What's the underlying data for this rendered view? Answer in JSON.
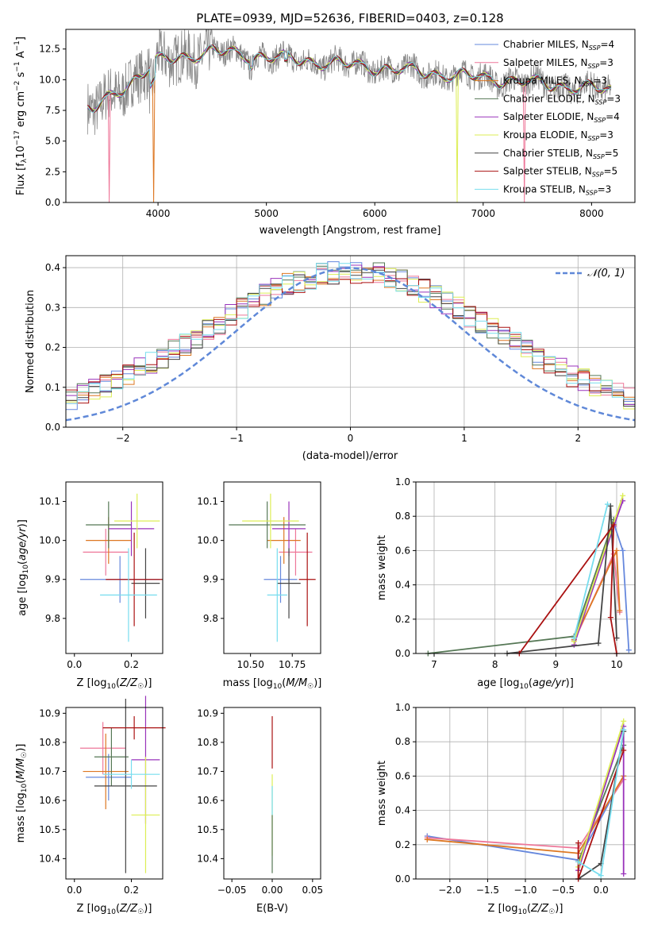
{
  "chart_data": [
    {
      "id": "spectrum",
      "type": "line",
      "title": "PLATE=0939, MJD=52636, FIBERID=0403, z=0.128",
      "xlabel": "wavelength [Angstrom, rest frame]",
      "ylabel": "Flux [f_λ 10^-17 erg cm^-2 s^-1 A^-1]",
      "xlim": [
        3150,
        8400
      ],
      "ylim": [
        0,
        14.1
      ],
      "xticks": [
        4000,
        5000,
        6000,
        7000,
        8000
      ],
      "yticks": [
        0.0,
        2.5,
        5.0,
        7.5,
        10.0,
        12.5
      ],
      "legend": [
        "Chabrier MILES, N_SSP=4",
        "Salpeter MILES, N_SSP=3",
        "Kroupa MILES, N_SSP=3",
        "Chabrier ELODIE, N_SSP=3",
        "Salpeter ELODIE, N_SSP=4",
        "Kroupa ELODIE, N_SSP=3",
        "Chabrier STELIB, N_SSP=5",
        "Salpeter STELIB, N_SSP=5",
        "Kroupa STELIB, N_SSP=3"
      ],
      "legend_position": "right",
      "data_wavelength_range": [
        3350,
        8180
      ],
      "model_cutoffs": [
        {
          "model": "Salpeter MILES",
          "drops_to_zero_at": [
            3550,
            7380
          ]
        },
        {
          "model": "Kroupa MILES",
          "drops_to_zero_at": [
            3960
          ]
        },
        {
          "model": "Kroupa ELODIE",
          "drops_to_zero_at": [
            6760
          ]
        }
      ]
    },
    {
      "id": "residuals",
      "type": "histogram",
      "xlabel": "(data-model)/error",
      "ylabel": "Normed distribution",
      "xlim": [
        -2.5,
        2.5
      ],
      "ylim": [
        0,
        0.43
      ],
      "xticks": [
        -2,
        -1,
        0,
        1,
        2
      ],
      "yticks": [
        0.0,
        0.1,
        0.2,
        0.3,
        0.4
      ],
      "grid": true,
      "reference_curve": {
        "label": "𝒩(0, 1)",
        "mean": 0,
        "sigma": 1,
        "legend_position": "top-right"
      }
    },
    {
      "id": "age_vs_Z",
      "type": "errorbar",
      "xlabel": "Z [log10(Z/Z☉)]",
      "ylabel": "age  [log10(age/yr)]",
      "xlim": [
        -0.03,
        0.31
      ],
      "ylim": [
        9.71,
        10.15
      ],
      "xticks": [
        0.0,
        0.2
      ],
      "yticks": [
        9.8,
        9.9,
        10.0,
        10.1
      ],
      "points": [
        {
          "model": "Chabrier MILES",
          "x": 0.16,
          "xerr": 0.14,
          "y": 9.9,
          "yerr": 0.06
        },
        {
          "model": "Salpeter MILES",
          "x": 0.11,
          "xerr": 0.08,
          "y": 9.97,
          "yerr": 0.06
        },
        {
          "model": "Kroupa MILES",
          "x": 0.12,
          "xerr": 0.08,
          "y": 10.0,
          "yerr": 0.06
        },
        {
          "model": "Chabrier ELODIE",
          "x": 0.12,
          "xerr": 0.08,
          "y": 10.04,
          "yerr": 0.06
        },
        {
          "model": "Salpeter ELODIE",
          "x": 0.2,
          "xerr": 0.08,
          "y": 10.03,
          "yerr": 0.07
        },
        {
          "model": "Kroupa ELODIE",
          "x": 0.22,
          "xerr": 0.08,
          "y": 10.05,
          "yerr": 0.07
        },
        {
          "model": "Chabrier STELIB",
          "x": 0.25,
          "xerr": 0.05,
          "y": 9.89,
          "yerr": 0.09
        },
        {
          "model": "Salpeter STELIB",
          "x": 0.21,
          "xerr": 0.1,
          "y": 9.9,
          "yerr": 0.12
        },
        {
          "model": "Kroupa STELIB",
          "x": 0.19,
          "xerr": 0.1,
          "y": 9.86,
          "yerr": 0.12
        }
      ]
    },
    {
      "id": "age_vs_mass",
      "type": "errorbar",
      "xlabel": "mass [log10(M/M☉)]",
      "ylabel": "",
      "xlim": [
        10.34,
        10.92
      ],
      "ylim": [
        9.71,
        10.15
      ],
      "xticks": [
        10.5,
        10.75
      ],
      "yticks": [
        9.8,
        9.9,
        10.0,
        10.1
      ],
      "points": [
        {
          "model": "Chabrier MILES",
          "x": 10.68,
          "xerr": 0.1,
          "y": 9.9,
          "yerr": 0.06
        },
        {
          "model": "Salpeter MILES",
          "x": 10.77,
          "xerr": 0.1,
          "y": 9.97,
          "yerr": 0.06
        },
        {
          "model": "Kroupa MILES",
          "x": 10.7,
          "xerr": 0.1,
          "y": 10.0,
          "yerr": 0.06
        },
        {
          "model": "Chabrier ELODIE",
          "x": 10.6,
          "xerr": 0.23,
          "y": 10.04,
          "yerr": 0.06
        },
        {
          "model": "Salpeter ELODIE",
          "x": 10.73,
          "xerr": 0.1,
          "y": 10.03,
          "yerr": 0.07
        },
        {
          "model": "Kroupa ELODIE",
          "x": 10.62,
          "xerr": 0.17,
          "y": 10.05,
          "yerr": 0.07
        },
        {
          "model": "Chabrier STELIB",
          "x": 10.73,
          "xerr": 0.07,
          "y": 9.89,
          "yerr": 0.09
        },
        {
          "model": "Salpeter STELIB",
          "x": 10.84,
          "xerr": 0.05,
          "y": 9.9,
          "yerr": 0.12
        },
        {
          "model": "Kroupa STELIB",
          "x": 10.66,
          "xerr": 0.06,
          "y": 9.86,
          "yerr": 0.12
        }
      ]
    },
    {
      "id": "massweight_vs_age",
      "type": "line",
      "xlabel": "age  [log10(age/yr)]",
      "ylabel": "mass weight",
      "xlim": [
        6.7,
        10.3
      ],
      "ylim": [
        0,
        1.0
      ],
      "xticks": [
        7,
        8,
        9,
        10
      ],
      "yticks": [
        0.0,
        0.2,
        0.4,
        0.6,
        0.8,
        1.0
      ],
      "grid": true,
      "series": [
        {
          "name": "Chabrier MILES",
          "x": [
            9.3,
            9.95,
            10.1,
            10.2
          ],
          "y": [
            0.08,
            0.76,
            0.6,
            0.02
          ]
        },
        {
          "name": "Salpeter MILES",
          "x": [
            9.3,
            9.95,
            10.05
          ],
          "y": [
            0.07,
            0.58,
            0.24
          ]
        },
        {
          "name": "Kroupa MILES",
          "x": [
            9.3,
            10.0,
            10.05
          ],
          "y": [
            0.08,
            0.6,
            0.25
          ]
        },
        {
          "name": "Chabrier ELODIE",
          "x": [
            6.9,
            9.3,
            9.95
          ],
          "y": [
            0.0,
            0.1,
            0.78
          ]
        },
        {
          "name": "Salpeter ELODIE",
          "x": [
            9.3,
            9.95,
            10.1
          ],
          "y": [
            0.05,
            0.74,
            0.89
          ]
        },
        {
          "name": "Kroupa ELODIE",
          "x": [
            9.3,
            10.1
          ],
          "y": [
            0.07,
            0.92
          ]
        },
        {
          "name": "Chabrier STELIB",
          "x": [
            8.2,
            9.7,
            9.9,
            10.0
          ],
          "y": [
            0.0,
            0.06,
            0.86,
            0.09
          ]
        },
        {
          "name": "Salpeter STELIB",
          "x": [
            8.4,
            9.95,
            9.9,
            10.0
          ],
          "y": [
            0.0,
            0.75,
            0.21,
            0.0
          ]
        },
        {
          "name": "Kroupa STELIB",
          "x": [
            9.3,
            9.85
          ],
          "y": [
            0.09,
            0.87
          ]
        }
      ]
    },
    {
      "id": "mass_vs_Z",
      "type": "errorbar",
      "xlabel": "Z [log10(Z/Z☉)]",
      "ylabel": "mass [log10(M/M☉)]",
      "xlim": [
        -0.03,
        0.31
      ],
      "ylim": [
        10.33,
        10.92
      ],
      "xticks": [
        0.0,
        0.2
      ],
      "yticks": [
        10.4,
        10.5,
        10.6,
        10.7,
        10.8,
        10.9
      ],
      "points": [
        {
          "model": "Chabrier MILES",
          "x": 0.12,
          "xerr": 0.08,
          "y": 10.68,
          "yerr": 0.08
        },
        {
          "model": "Salpeter MILES",
          "x": 0.1,
          "xerr": 0.08,
          "y": 10.78,
          "yerr": 0.09
        },
        {
          "model": "Kroupa MILES",
          "x": 0.11,
          "xerr": 0.08,
          "y": 10.7,
          "yerr": 0.13
        },
        {
          "model": "Chabrier ELODIE",
          "x": 0.13,
          "xerr": 0.06,
          "y": 10.75,
          "yerr": 0.1
        },
        {
          "model": "Salpeter ELODIE",
          "x": 0.25,
          "xerr": 0.05,
          "y": 10.74,
          "yerr": 0.22
        },
        {
          "model": "Kroupa ELODIE",
          "x": 0.25,
          "xerr": 0.05,
          "y": 10.55,
          "yerr": 0.2
        },
        {
          "model": "Chabrier STELIB",
          "x": 0.18,
          "xerr": 0.11,
          "y": 10.65,
          "yerr": 0.3
        },
        {
          "model": "Salpeter STELIB",
          "x": 0.21,
          "xerr": 0.11,
          "y": 10.85,
          "yerr": 0.04
        },
        {
          "model": "Kroupa STELIB",
          "x": 0.2,
          "xerr": 0.1,
          "y": 10.69,
          "yerr": 0.05
        }
      ]
    },
    {
      "id": "mass_vs_ebv",
      "type": "errorbar",
      "xlabel": "E(B-V)",
      "ylabel": "",
      "xlim": [
        -0.06,
        0.06
      ],
      "ylim": [
        10.33,
        10.92
      ],
      "xticks": [
        -0.05,
        0.0,
        0.05
      ],
      "yticks": [
        10.4,
        10.5,
        10.6,
        10.7,
        10.8,
        10.9
      ],
      "points": [
        {
          "model": "Salpeter STELIB",
          "x": 0.0,
          "y": 10.8,
          "yerr": 0.09
        },
        {
          "model": "Kroupa ELODIE",
          "x": 0.0,
          "y": 10.55,
          "yerr": 0.14
        },
        {
          "model": "Kroupa STELIB",
          "x": 0.0,
          "y": 10.6,
          "yerr": 0.05
        },
        {
          "model": "Chabrier ELODIE",
          "x": 0.0,
          "y": 10.45,
          "yerr": 0.1
        }
      ]
    },
    {
      "id": "massweight_vs_Z",
      "type": "line",
      "xlabel": "Z [log10(Z/Z☉)]",
      "ylabel": "mass weight",
      "xlim": [
        -2.45,
        0.45
      ],
      "ylim": [
        0,
        1.0
      ],
      "xticks": [
        -2.0,
        -1.5,
        -1.0,
        -0.5,
        0.0
      ],
      "yticks": [
        0.0,
        0.2,
        0.4,
        0.6,
        0.8,
        1.0
      ],
      "grid": true,
      "series": [
        {
          "name": "Chabrier MILES",
          "x": [
            -2.3,
            -0.3,
            0.3
          ],
          "y": [
            0.25,
            0.11,
            0.6
          ]
        },
        {
          "name": "Salpeter MILES",
          "x": [
            -2.3,
            -0.3,
            0.3
          ],
          "y": [
            0.24,
            0.18,
            0.58
          ]
        },
        {
          "name": "Kroupa MILES",
          "x": [
            -2.3,
            -0.3,
            0.3
          ],
          "y": [
            0.23,
            0.15,
            0.6
          ]
        },
        {
          "name": "Chabrier ELODIE",
          "x": [
            -0.3,
            0.3
          ],
          "y": [
            0.1,
            0.78
          ]
        },
        {
          "name": "Salpeter ELODIE",
          "x": [
            -0.3,
            0.3,
            0.3
          ],
          "y": [
            0.05,
            0.89,
            0.03
          ]
        },
        {
          "name": "Kroupa ELODIE",
          "x": [
            -0.3,
            0.3
          ],
          "y": [
            0.07,
            0.92
          ]
        },
        {
          "name": "Chabrier STELIB",
          "x": [
            -0.3,
            0.0,
            0.3
          ],
          "y": [
            0.0,
            0.09,
            0.86
          ]
        },
        {
          "name": "Salpeter STELIB",
          "x": [
            -0.3,
            -0.3,
            0.3
          ],
          "y": [
            0.21,
            0.0,
            0.75
          ]
        },
        {
          "name": "Kroupa STELIB",
          "x": [
            -0.3,
            0.0,
            0.3
          ],
          "y": [
            0.1,
            0.02,
            0.87
          ]
        }
      ]
    }
  ],
  "colors": {
    "Chabrier MILES": "#6688dd",
    "Salpeter MILES": "#ee7799",
    "Kroupa MILES": "#dd7722",
    "Chabrier ELODIE": "#557755",
    "Salpeter ELODIE": "#9933bb",
    "Kroupa ELODIE": "#ddee55",
    "Chabrier STELIB": "#444444",
    "Salpeter STELIB": "#aa1111",
    "Kroupa STELIB": "#77ddee",
    "data_spectrum": "#888888",
    "gaussian": "#5f88d8",
    "grid": "#b0b0b0"
  }
}
